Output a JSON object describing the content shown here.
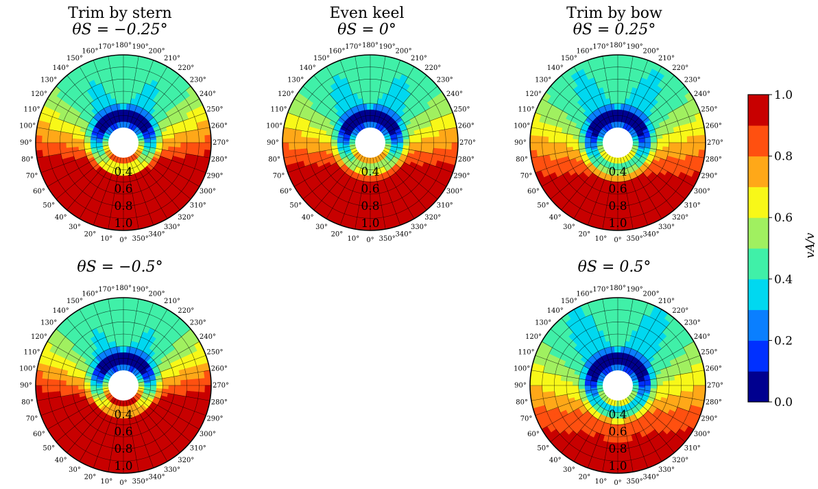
{
  "panels": [
    {
      "id": "p1",
      "title": "Trim by stern",
      "subtitle": "θS = −0.25°",
      "trim": -0.25
    },
    {
      "id": "p2",
      "title": "Even keel",
      "subtitle": "θS = 0°",
      "trim": 0
    },
    {
      "id": "p3",
      "title": "Trim by bow",
      "subtitle": "θS = 0.25°",
      "trim": 0.25
    },
    {
      "id": "p4",
      "title": "",
      "subtitle": "θS = −0.5°",
      "trim": -0.5
    },
    {
      "id": "p5",
      "title": "",
      "subtitle": "θS = 0.5°",
      "trim": 0.5
    }
  ],
  "angle_labels": [
    "0°",
    "10°",
    "20°",
    "30°",
    "40°",
    "50°",
    "60°",
    "70°",
    "80°",
    "90°",
    "100°",
    "110°",
    "120°",
    "130°",
    "140°",
    "150°",
    "160°",
    "170°",
    "180°",
    "190°",
    "200°",
    "210°",
    "220°",
    "230°",
    "240°",
    "250°",
    "260°",
    "270°",
    "280°",
    "290°",
    "300°",
    "310°",
    "320°",
    "330°",
    "340°",
    "350°"
  ],
  "contour_labels": [
    "0.4",
    "0.6",
    "0.8",
    "1.0"
  ],
  "colorbar": {
    "label": "vA/v",
    "ticks": [
      "0.0",
      "0.2",
      "0.4",
      "0.6",
      "0.8",
      "1.0"
    ],
    "colors": [
      "#00008f",
      "#0030ff",
      "#0a7fff",
      "#00d8f0",
      "#40f0a8",
      "#a0f060",
      "#f8f818",
      "#ffa818",
      "#ff5010",
      "#c80000"
    ]
  },
  "chart_data": [
    {
      "type": "heatmap",
      "subplot": "polar wake field",
      "title": "Trim by stern",
      "subtitle": "θS = −0.25°",
      "zlim": [
        0,
        1
      ],
      "contour_levels": [
        0.4,
        0.6,
        0.8,
        1.0
      ],
      "colorbar_label": "vA/v"
    },
    {
      "type": "heatmap",
      "subplot": "polar wake field",
      "title": "Even keel",
      "subtitle": "θS = 0°",
      "zlim": [
        0,
        1
      ],
      "contour_levels": [
        0.4,
        0.6,
        0.8,
        1.0
      ],
      "colorbar_label": "vA/v"
    },
    {
      "type": "heatmap",
      "subplot": "polar wake field",
      "title": "Trim by bow",
      "subtitle": "θS = 0.25°",
      "zlim": [
        0,
        1
      ],
      "contour_levels": [
        0.4,
        0.6,
        0.8,
        1.0
      ],
      "colorbar_label": "vA/v"
    },
    {
      "type": "heatmap",
      "subplot": "polar wake field",
      "title": "",
      "subtitle": "θS = −0.5°",
      "zlim": [
        0,
        1
      ],
      "contour_levels": [
        0.4,
        0.6,
        0.8,
        1.0
      ],
      "colorbar_label": "vA/v"
    },
    {
      "type": "heatmap",
      "subplot": "polar wake field",
      "title": "",
      "subtitle": "θS = 0.5°",
      "zlim": [
        0,
        1
      ],
      "contour_levels": [
        0.4,
        0.6,
        0.8,
        1.0
      ],
      "colorbar_label": "vA/v"
    }
  ]
}
